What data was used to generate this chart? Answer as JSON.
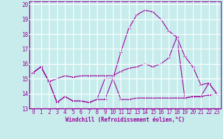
{
  "xlabel": "Windchill (Refroidissement éolien,°C)",
  "background_color": "#c8ecec",
  "line_color": "#990099",
  "grid_color": "#ffffff",
  "xlim": [
    -0.5,
    23.5
  ],
  "ylim": [
    13,
    20.2
  ],
  "yticks": [
    13,
    14,
    15,
    16,
    17,
    18,
    19,
    20
  ],
  "xticks": [
    0,
    1,
    2,
    3,
    4,
    5,
    6,
    7,
    8,
    9,
    10,
    11,
    12,
    13,
    14,
    15,
    16,
    17,
    18,
    19,
    20,
    21,
    22,
    23
  ],
  "series1_x": [
    0,
    1,
    2,
    3,
    4,
    5,
    6,
    7,
    8,
    9,
    10,
    11,
    12,
    13,
    14,
    15,
    16,
    17,
    18,
    19,
    20,
    21,
    22,
    23
  ],
  "series1_y": [
    15.4,
    15.8,
    14.8,
    13.4,
    13.8,
    13.5,
    13.5,
    13.4,
    13.6,
    13.6,
    15.0,
    13.6,
    13.6,
    13.7,
    13.7,
    13.7,
    13.7,
    13.7,
    13.7,
    13.7,
    13.8,
    13.8,
    13.9,
    14.0
  ],
  "series2_x": [
    0,
    1,
    2,
    3,
    4,
    5,
    6,
    7,
    8,
    9,
    10,
    11,
    12,
    13,
    14,
    15,
    16,
    17,
    18,
    19,
    20,
    21,
    22,
    23
  ],
  "series2_y": [
    15.4,
    15.8,
    14.8,
    15.0,
    15.2,
    15.1,
    15.2,
    15.2,
    15.2,
    15.2,
    15.2,
    15.5,
    15.7,
    15.8,
    16.0,
    15.8,
    16.0,
    16.4,
    17.8,
    16.5,
    15.8,
    14.6,
    14.7,
    14.0
  ],
  "series3_x": [
    0,
    1,
    2,
    3,
    4,
    5,
    6,
    7,
    8,
    9,
    10,
    11,
    12,
    13,
    14,
    15,
    16,
    17,
    18,
    19,
    20,
    21,
    22,
    23
  ],
  "series3_y": [
    15.4,
    15.8,
    14.8,
    13.4,
    13.8,
    13.5,
    13.5,
    13.4,
    13.6,
    15.0,
    15.0,
    16.8,
    18.4,
    19.3,
    19.6,
    19.5,
    19.0,
    18.2,
    17.8,
    13.7,
    13.8,
    13.8,
    14.7,
    14.0
  ],
  "tick_fontsize": 5.5,
  "xlabel_fontsize": 5.5
}
